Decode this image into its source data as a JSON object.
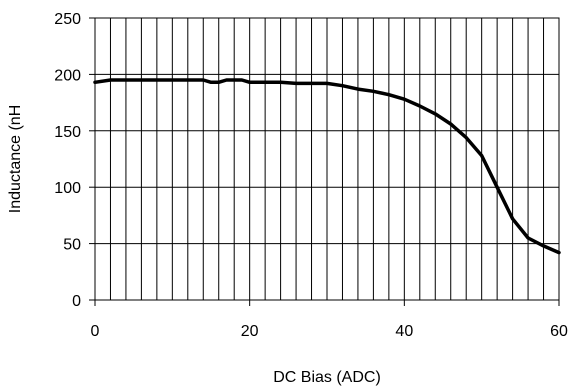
{
  "chart_data": {
    "type": "line",
    "title": "",
    "xlabel": "DC Bias (ADC)",
    "ylabel": "Inductance (nH",
    "xlim": [
      0,
      60
    ],
    "ylim": [
      0,
      250
    ],
    "x_ticks": [
      0,
      20,
      40,
      60
    ],
    "y_ticks": [
      0,
      50,
      100,
      150,
      200,
      250
    ],
    "x_tick_labels": [
      "0",
      "20",
      "40",
      "60"
    ],
    "y_tick_labels": [
      "0",
      "50",
      "100",
      "150",
      "200",
      "250"
    ],
    "grid": true,
    "vertical_gridlines_every": 2,
    "horizontal_gridlines_every": 50,
    "legend": "none",
    "line_color": "#000000",
    "series": [
      {
        "x": [
          0,
          2,
          4,
          6,
          8,
          10,
          12,
          14,
          15,
          16,
          17,
          18,
          19,
          20,
          22,
          24,
          26,
          28,
          30,
          32,
          34,
          36,
          38,
          40,
          42,
          44,
          46,
          48,
          50,
          52,
          54,
          56,
          58,
          60
        ],
        "values": [
          193,
          195,
          195,
          195,
          195,
          195,
          195,
          195,
          193,
          193,
          195,
          195,
          195,
          193,
          193,
          193,
          192,
          192,
          192,
          190,
          187,
          185,
          182,
          178,
          172,
          165,
          156,
          144,
          128,
          100,
          72,
          55,
          48,
          42
        ]
      }
    ]
  }
}
